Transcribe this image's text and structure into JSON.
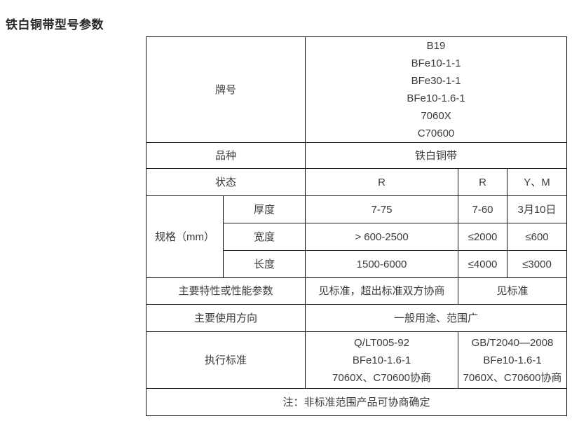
{
  "page_title": "铁白铜带型号参数",
  "table": {
    "grade": {
      "label": "牌号",
      "values": [
        "B19",
        "BFe10-1-1",
        "BFe30-1-1",
        "BFe10-1.6-1",
        "7060X",
        "C70600"
      ]
    },
    "variety": {
      "label": "品种",
      "value": "铁白铜带"
    },
    "state": {
      "label": "状态",
      "col_b": "R",
      "col_c": "R",
      "col_d": "Y、M"
    },
    "spec": {
      "label": "规格（mm）",
      "thickness": {
        "label": "厚度",
        "col_b": "7-75",
        "col_c": "7-60",
        "col_d": "3月10日"
      },
      "width": {
        "label": "宽度",
        "col_b": "> 600-2500",
        "col_c": "≤2000",
        "col_d": "≤600"
      },
      "length": {
        "label": "长度",
        "col_b": "1500-6000",
        "col_c": "≤4000",
        "col_d": "≤3000"
      }
    },
    "features": {
      "label": "主要特性或性能参数",
      "col_b": "见标准，超出标准双方协商",
      "col_cd": "见标准"
    },
    "usage": {
      "label": "主要使用方向",
      "value": "一般用途、范围广"
    },
    "standard": {
      "label": "执行标准",
      "col_b": [
        "Q/LT005-92",
        "BFe10-1.6-1",
        "7060X、C70600协商"
      ],
      "col_cd": [
        "GB/T2040—2008",
        "BFe10-1.6-1",
        "7060X、C70600协商"
      ]
    },
    "note": {
      "value": "注：非标准范围产品可协商确定"
    }
  },
  "colors": {
    "background": "#ffffff",
    "text": "#3b3b3b",
    "title": "#262626",
    "border": "#151515"
  }
}
